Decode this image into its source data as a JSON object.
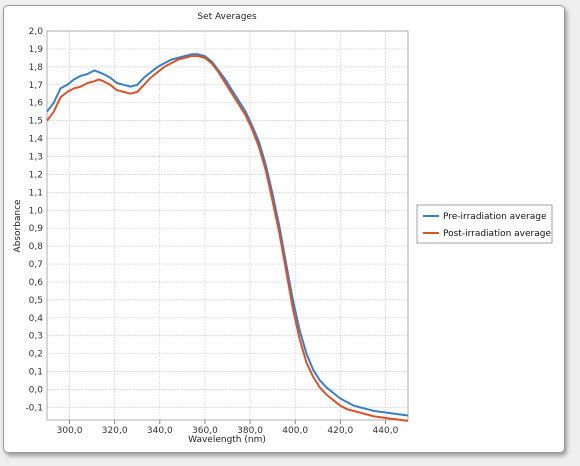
{
  "chart_data": {
    "type": "line",
    "title": "Set Averages",
    "xlabel": "Wavelength (nm)",
    "ylabel": "Absorbance",
    "xlim": [
      290,
      450
    ],
    "ylim": [
      -0.17,
      2.0
    ],
    "xticks": [
      300,
      320,
      340,
      360,
      380,
      400,
      420,
      440
    ],
    "xtick_labels": [
      "300,0",
      "320,0",
      "340,0",
      "360,0",
      "380,0",
      "400,0",
      "420,0",
      "440,0"
    ],
    "yticks": [
      2.0,
      1.9,
      1.8,
      1.7,
      1.6,
      1.5,
      1.4,
      1.3,
      1.2,
      1.1,
      1.0,
      0.9,
      0.8,
      0.7,
      0.6,
      0.5,
      0.4,
      0.3,
      0.2,
      0.1,
      0.0,
      -0.1
    ],
    "ytick_labels": [
      "2,0",
      "1,9",
      "1,8",
      "1,7",
      "1,6",
      "1,5",
      "1,4",
      "1,3",
      "1,2",
      "1,1",
      "1,0",
      "0,9",
      "0,8",
      "0,7",
      "0,6",
      "0,5",
      "0,4",
      "0,3",
      "0,2",
      "0,1",
      "0,0",
      "-0,1"
    ],
    "grid": true,
    "legend_position": "right",
    "series": [
      {
        "name": "Pre-irradiation average",
        "color": "#3a7fc1",
        "x": [
          290,
          293,
          296,
          299,
          302,
          305,
          308,
          311,
          313,
          315,
          318,
          321,
          324,
          327,
          330,
          333,
          336,
          339,
          342,
          345,
          348,
          351,
          354,
          357,
          360,
          363,
          366,
          369,
          372,
          375,
          378,
          381,
          384,
          387,
          390,
          393,
          396,
          399,
          402,
          405,
          408,
          411,
          414,
          417,
          420,
          423,
          426,
          429,
          432,
          435,
          438,
          441,
          444,
          447,
          450
        ],
        "y": [
          1.55,
          1.6,
          1.68,
          1.7,
          1.73,
          1.75,
          1.76,
          1.78,
          1.77,
          1.76,
          1.74,
          1.71,
          1.7,
          1.69,
          1.7,
          1.74,
          1.77,
          1.8,
          1.82,
          1.84,
          1.85,
          1.86,
          1.87,
          1.87,
          1.86,
          1.83,
          1.78,
          1.73,
          1.67,
          1.61,
          1.55,
          1.47,
          1.38,
          1.25,
          1.09,
          0.91,
          0.7,
          0.5,
          0.33,
          0.2,
          0.11,
          0.05,
          0.01,
          -0.02,
          -0.05,
          -0.07,
          -0.09,
          -0.1,
          -0.11,
          -0.12,
          -0.125,
          -0.13,
          -0.135,
          -0.14,
          -0.145
        ]
      },
      {
        "name": "Post-irradiation average",
        "color": "#d9542b",
        "x": [
          290,
          293,
          296,
          299,
          302,
          305,
          308,
          311,
          313,
          315,
          318,
          321,
          324,
          327,
          330,
          333,
          336,
          339,
          342,
          345,
          348,
          351,
          354,
          357,
          360,
          363,
          366,
          369,
          372,
          375,
          378,
          381,
          384,
          387,
          390,
          393,
          396,
          399,
          402,
          405,
          408,
          411,
          414,
          417,
          420,
          423,
          426,
          429,
          432,
          435,
          438,
          441,
          444,
          447,
          450
        ],
        "y": [
          1.5,
          1.55,
          1.63,
          1.66,
          1.68,
          1.69,
          1.71,
          1.72,
          1.73,
          1.72,
          1.7,
          1.67,
          1.66,
          1.65,
          1.66,
          1.7,
          1.74,
          1.77,
          1.8,
          1.82,
          1.84,
          1.85,
          1.86,
          1.86,
          1.85,
          1.82,
          1.77,
          1.71,
          1.65,
          1.59,
          1.53,
          1.45,
          1.35,
          1.22,
          1.05,
          0.87,
          0.66,
          0.45,
          0.28,
          0.15,
          0.07,
          0.01,
          -0.03,
          -0.06,
          -0.09,
          -0.11,
          -0.12,
          -0.13,
          -0.14,
          -0.15,
          -0.155,
          -0.16,
          -0.165,
          -0.17,
          -0.175
        ]
      }
    ]
  }
}
